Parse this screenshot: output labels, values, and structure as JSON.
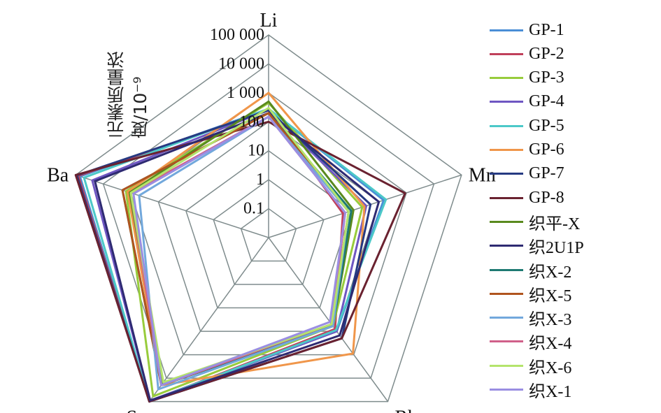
{
  "chart_data": {
    "type": "radar",
    "title": "",
    "ylabel_line1": "元素质量浓",
    "ylabel_line2": "度/10⁻⁹",
    "scale": "log",
    "axes": [
      "Li",
      "Mn",
      "Rb",
      "Sr",
      "Ba"
    ],
    "ticks": [
      "0.1",
      "1",
      "10",
      "100",
      "1 000",
      "10 000",
      "100 000"
    ],
    "tick_values": [
      0.1,
      1,
      10,
      100,
      1000,
      10000,
      100000
    ],
    "range": [
      0.01,
      100000
    ],
    "grid": true,
    "legend_position": "right",
    "series": [
      {
        "name": "GP-1",
        "color": "#4a8ed6",
        "values": [
          280,
          150,
          100,
          140000,
          70000
        ]
      },
      {
        "name": "GP-2",
        "color": "#c0405a",
        "values": [
          250,
          5,
          80,
          140000,
          80000
        ]
      },
      {
        "name": "GP-3",
        "color": "#98cc3c",
        "values": [
          450,
          25,
          60,
          60000,
          1500
        ]
      },
      {
        "name": "GP-4",
        "color": "#6e56c2",
        "values": [
          260,
          35,
          100,
          90000,
          25000
        ]
      },
      {
        "name": "GP-5",
        "color": "#4cc8c8",
        "values": [
          280,
          180,
          90,
          100000,
          50000
        ]
      },
      {
        "name": "GP-6",
        "color": "#f0964a",
        "values": [
          1000,
          30,
          900,
          20000,
          1300
        ]
      },
      {
        "name": "GP-7",
        "color": "#263a82",
        "values": [
          250,
          50,
          200,
          250000,
          90000
        ]
      },
      {
        "name": "GP-8",
        "color": "#6a2230",
        "values": [
          100,
          900,
          200,
          250000,
          100000
        ]
      },
      {
        "name": "织平-X",
        "color": "#5a8a1e",
        "values": [
          500,
          12,
          60,
          16000,
          1100
        ]
      },
      {
        "name": "织2U1P",
        "color": "#2e2a72",
        "values": [
          200,
          100,
          150,
          90000,
          20000
        ]
      },
      {
        "name": "织X-2",
        "color": "#1e7a72",
        "values": [
          200,
          10,
          60,
          20000,
          2000
        ]
      },
      {
        "name": "织X-5",
        "color": "#b0541e",
        "values": [
          200,
          8,
          50,
          20000,
          2000
        ]
      },
      {
        "name": "织X-3",
        "color": "#72a8dc",
        "values": [
          150,
          8,
          60,
          30000,
          500
        ]
      },
      {
        "name": "织X-4",
        "color": "#d0608a",
        "values": [
          150,
          6,
          50,
          20000,
          1000
        ]
      },
      {
        "name": "织X-6",
        "color": "#b4e46c",
        "values": [
          300,
          8,
          50,
          15000,
          1000
        ]
      },
      {
        "name": "织X-1",
        "color": "#9a8ee2",
        "values": [
          150,
          6,
          40,
          20000,
          800
        ]
      }
    ]
  }
}
